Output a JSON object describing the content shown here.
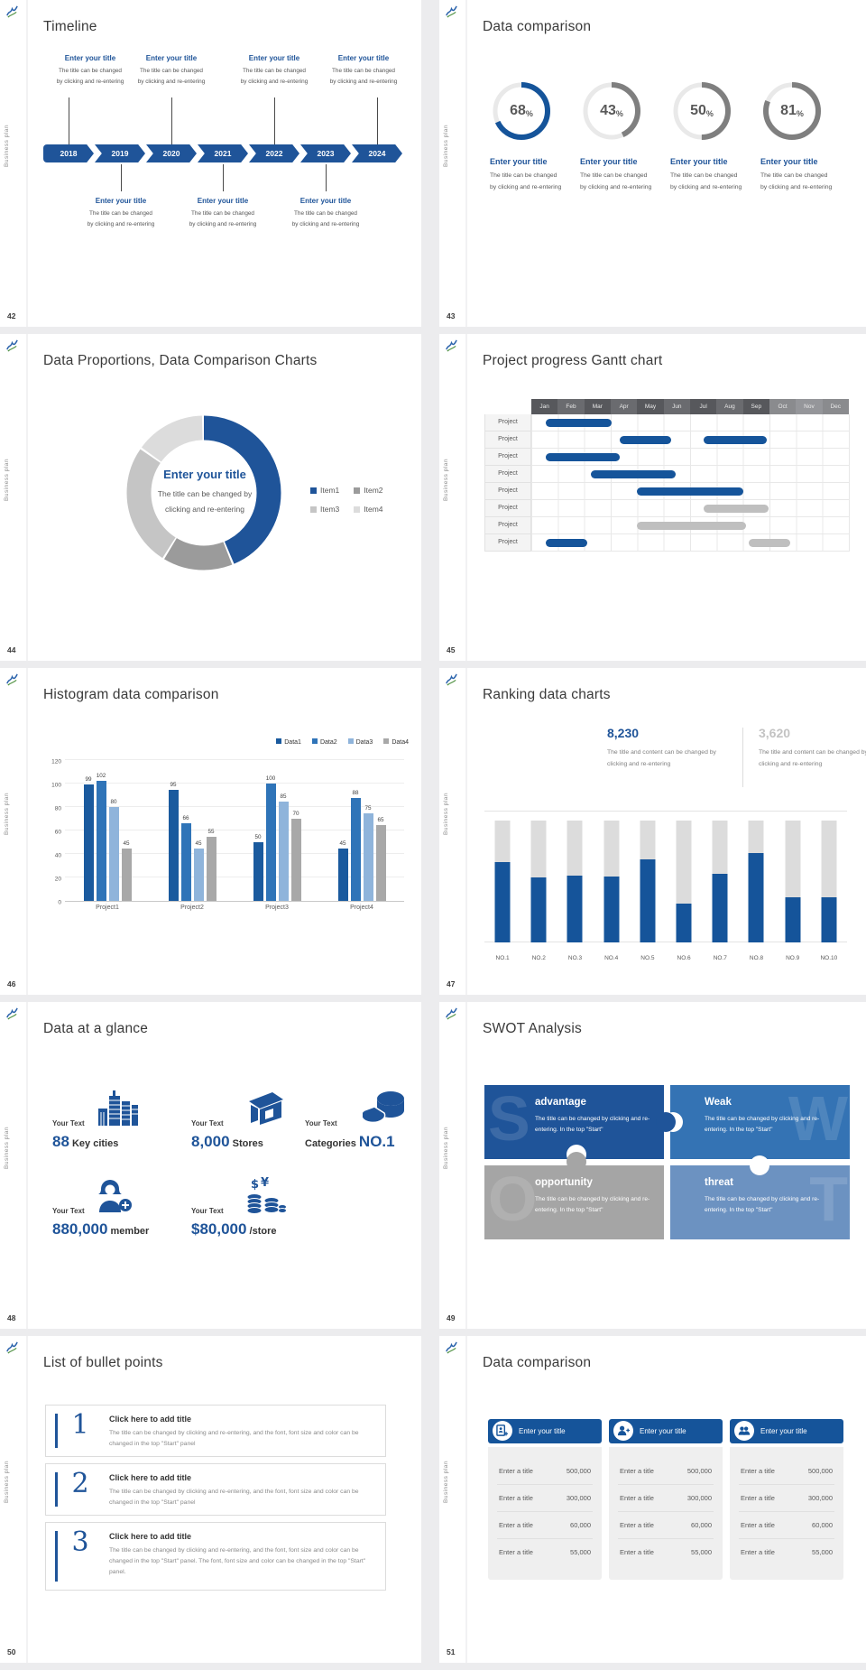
{
  "page": {
    "background": "#ECECEE",
    "slide_background": "#FFFFFF"
  },
  "brand": {
    "sidebar_text": "Business plan"
  },
  "slides": {
    "timeline": {
      "number": "42",
      "title": "Timeline",
      "years": [
        "2018",
        "2019",
        "2020",
        "2021",
        "2022",
        "2023",
        "2024"
      ],
      "top_items": [
        {
          "title": "Enter your title",
          "line1": "The title can be changed",
          "line2": "by clicking and re-entering"
        },
        {
          "title": "Enter your title",
          "line1": "The title can be changed",
          "line2": "by clicking and re-entering"
        },
        {
          "title": "Enter your title",
          "line1": "The title can be changed",
          "line2": "by clicking and re-entering"
        },
        {
          "title": "Enter your title",
          "line1": "The title can be changed",
          "line2": "by clicking and re-entering"
        }
      ],
      "bottom_items": [
        {
          "title": "Enter your title",
          "line1": "The title can be changed",
          "line2": "by clicking and re-entering"
        },
        {
          "title": "Enter your title",
          "line1": "The title can be changed",
          "line2": "by clicking and re-entering"
        },
        {
          "title": "Enter your title",
          "line1": "The title can be changed",
          "line2": "by clicking and re-entering"
        }
      ]
    },
    "data_comparison_rings": {
      "number": "43",
      "title": "Data comparison",
      "percent_suffix": "%",
      "items": [
        {
          "percent": "68",
          "label": "Enter your title",
          "desc1": "The title can be changed",
          "desc2": "by clicking and re-entering"
        },
        {
          "percent": "43",
          "label": "Enter your title",
          "desc1": "The title can be changed",
          "desc2": "by clicking and re-entering"
        },
        {
          "percent": "50",
          "label": "Enter your title",
          "desc1": "The title can be changed",
          "desc2": "by clicking and re-entering"
        },
        {
          "percent": "81",
          "label": "Enter your title",
          "desc1": "The title can be changed",
          "desc2": "by clicking and re-entering"
        }
      ]
    },
    "donut": {
      "number": "44",
      "title": "Data Proportions, Data Comparison Charts",
      "center_title": "Enter your title",
      "center_desc1": "The title can be changed by",
      "center_desc2": "clicking and re-entering",
      "legend": [
        "Item1",
        "Item2",
        "Item3",
        "Item4"
      ]
    },
    "gantt": {
      "number": "45",
      "title": "Project progress Gantt chart"
    },
    "histogram": {
      "number": "46",
      "title": "Histogram data comparison"
    },
    "ranking": {
      "number": "47",
      "title": "Ranking data charts",
      "stat1_value": "8,230",
      "stat1_desc": "The title and content can be changed by clicking and re-entering",
      "stat2_value": "3,620",
      "stat2_desc": "The title and content can be changed by clicking and re-entering"
    },
    "glance": {
      "number": "48",
      "title": "Data at a glance",
      "items": [
        {
          "prefix": "Your Text",
          "value": "88",
          "label": "Key cities"
        },
        {
          "prefix": "Your Text",
          "value": "8,000",
          "label": "Stores"
        },
        {
          "prefix": "Your Text",
          "label": "Categories",
          "value": "NO.1"
        },
        {
          "prefix": "Your Text",
          "value": "880,000",
          "label": "member"
        },
        {
          "prefix": "Your Text",
          "value": "$80,000",
          "label": "/store"
        }
      ]
    },
    "swot": {
      "number": "49",
      "title": "SWOT Analysis",
      "pieces": [
        {
          "letter": "S",
          "heading": "advantage",
          "desc": "The title can be changed by clicking and re-entering. In the top \"Start\"",
          "color": "#1F5499"
        },
        {
          "letter": "W",
          "heading": "Weak",
          "desc": "The title can be changed by clicking and re-entering. In the top \"Start\"",
          "color": "#3473B4"
        },
        {
          "letter": "O",
          "heading": "opportunity",
          "desc": "The title can be changed by clicking and re-entering. In the top \"Start\"",
          "color": "#A5A5A5"
        },
        {
          "letter": "T",
          "heading": "threat",
          "desc": "The title can be changed by clicking and re-entering. In the top \"Start\"",
          "color": "#6C92C1"
        }
      ]
    },
    "bullets": {
      "number": "50",
      "title": "List of bullet points",
      "items": [
        {
          "num": "1",
          "heading": "Click here to add title",
          "desc": "The title can be changed by clicking and re-entering, and the font, font size and color can be changed in the top \"Start\" panel"
        },
        {
          "num": "2",
          "heading": "Click here to add title",
          "desc": "The title can be changed by clicking and re-entering, and the font, font size and color can be changed in the top \"Start\" panel"
        },
        {
          "num": "3",
          "heading": "Click here to add title",
          "desc": "The title can be changed by clicking and re-entering, and the font, font size and color can be changed in the top \"Start\" panel. The font, font size and color can be changed in the top \"Start\" panel."
        }
      ]
    },
    "compare": {
      "number": "51",
      "title": "Data comparison",
      "cards": [
        {
          "header": "Enter your title",
          "icon": "document-user-icon",
          "rows": [
            {
              "label": "Enter a title",
              "value": "500,000"
            },
            {
              "label": "Enter a title",
              "value": "300,000"
            },
            {
              "label": "Enter a title",
              "value": "60,000"
            },
            {
              "label": "Enter a title",
              "value": "55,000"
            }
          ]
        },
        {
          "header": "Enter your title",
          "icon": "user-plus-icon",
          "rows": [
            {
              "label": "Enter a title",
              "value": "500,000"
            },
            {
              "label": "Enter a title",
              "value": "300,000"
            },
            {
              "label": "Enter a title",
              "value": "60,000"
            },
            {
              "label": "Enter a title",
              "value": "55,000"
            }
          ]
        },
        {
          "header": "Enter your title",
          "icon": "users-icon",
          "rows": [
            {
              "label": "Enter a title",
              "value": "500,000"
            },
            {
              "label": "Enter a title",
              "value": "300,000"
            },
            {
              "label": "Enter a title",
              "value": "60,000"
            },
            {
              "label": "Enter a title",
              "value": "55,000"
            }
          ]
        }
      ]
    }
  },
  "chart_data": [
    {
      "id": "progress-rings",
      "type": "pie",
      "title": "Data comparison",
      "unit": "%",
      "values": [
        68,
        43,
        50,
        81
      ],
      "colors": [
        "#15549A",
        "#7F7F7F",
        "#7F7F7F",
        "#7F7F7F"
      ],
      "track_color": "#E9E9E9"
    },
    {
      "id": "donut",
      "type": "pie",
      "title": "Data Proportions, Data Comparison Charts",
      "legend": [
        "Item1",
        "Item2",
        "Item3",
        "Item4"
      ],
      "values": [
        44,
        15,
        26,
        15
      ],
      "colors": [
        "#1F5499",
        "#9B9B9B",
        "#C5C5C5",
        "#DCDCDC"
      ],
      "legend_position": "right"
    },
    {
      "id": "gantt",
      "type": "bar",
      "title": "Project progress Gantt chart",
      "x": [
        "Jan",
        "Feb",
        "Mar",
        "Apr",
        "May",
        "Jun",
        "Jul",
        "Aug",
        "Sep",
        "Oct",
        "Nov",
        "Dec"
      ],
      "rows": [
        {
          "label": "Project",
          "bars": [
            {
              "start": 0.55,
              "end": 3.05,
              "color": "#15549A"
            }
          ]
        },
        {
          "label": "Project",
          "bars": [
            {
              "start": 3.35,
              "end": 5.3,
              "color": "#15549A"
            },
            {
              "start": 6.5,
              "end": 8.9,
              "color": "#15549A"
            }
          ]
        },
        {
          "label": "Project",
          "bars": [
            {
              "start": 0.55,
              "end": 3.35,
              "color": "#15549A"
            }
          ]
        },
        {
          "label": "Project",
          "bars": [
            {
              "start": 2.25,
              "end": 5.45,
              "color": "#15549A"
            }
          ]
        },
        {
          "label": "Project",
          "bars": [
            {
              "start": 4.0,
              "end": 8.0,
              "color": "#15549A"
            }
          ]
        },
        {
          "label": "Project",
          "bars": [
            {
              "start": 6.5,
              "end": 8.95,
              "color": "#BFBFBF"
            }
          ]
        },
        {
          "label": "Project",
          "bars": [
            {
              "start": 4.0,
              "end": 8.1,
              "color": "#BFBFBF"
            }
          ]
        },
        {
          "label": "Project",
          "bars": [
            {
              "start": 0.55,
              "end": 2.1,
              "color": "#15549A"
            },
            {
              "start": 8.2,
              "end": 9.8,
              "color": "#BFBFBF"
            }
          ]
        }
      ]
    },
    {
      "id": "histogram",
      "type": "bar",
      "title": "Histogram data comparison",
      "categories": [
        "Project1",
        "Project2",
        "Project3",
        "Project4"
      ],
      "series": [
        {
          "name": "Data1",
          "color": "#1A5A9E",
          "values": [
            99,
            95,
            50,
            45
          ]
        },
        {
          "name": "Data2",
          "color": "#2F74B8",
          "values": [
            102,
            66,
            100,
            88
          ]
        },
        {
          "name": "Data3",
          "color": "#8FB4DB",
          "values": [
            80,
            45,
            85,
            75
          ]
        },
        {
          "name": "Data4",
          "color": "#A8A8A8",
          "values": [
            45,
            55,
            70,
            65
          ]
        }
      ],
      "ylim": [
        0,
        120
      ],
      "yticks": [
        0,
        20,
        40,
        60,
        80,
        100,
        120
      ],
      "legend_position": "top-right"
    },
    {
      "id": "ranking",
      "type": "bar",
      "title": "Ranking data charts",
      "categories": [
        "NO.1",
        "NO.2",
        "NO.3",
        "NO.4",
        "NO.5",
        "NO.6",
        "NO.7",
        "NO.8",
        "NO.9",
        "NO.10"
      ],
      "values": [
        66,
        53,
        55,
        54,
        68,
        32,
        56,
        73,
        37,
        37
      ],
      "ylim": [
        0,
        100
      ],
      "bar_color": "#15549A",
      "track_color": "#DCDCDC"
    }
  ]
}
